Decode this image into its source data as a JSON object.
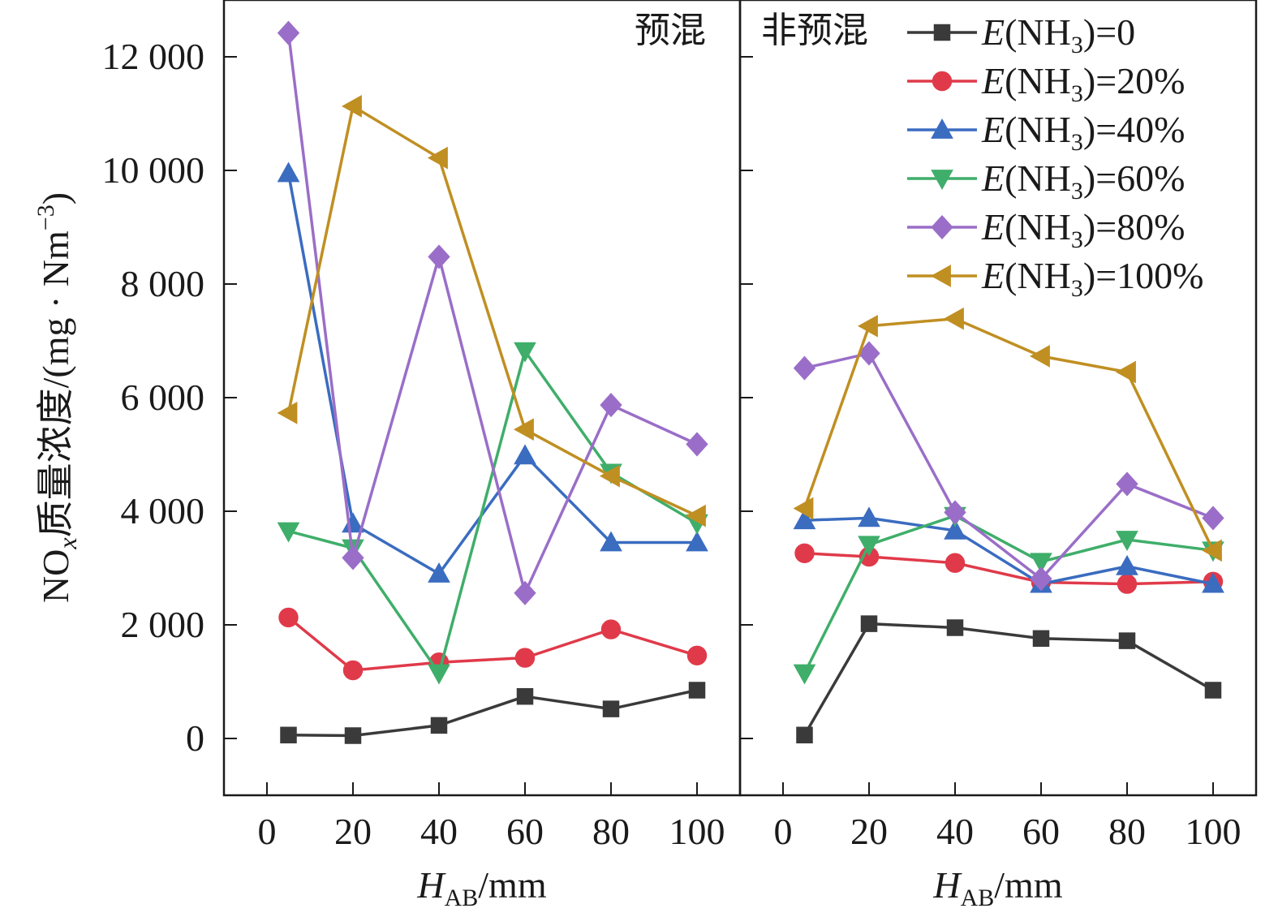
{
  "chart_data": {
    "type": "line",
    "ylabel": "NOx质量浓度/(mg · Nm⁻³)",
    "ylabel_parts": {
      "pre": "NO",
      "sub": "x",
      "post": "质量浓度/(mg · Nm",
      "sup": "−3",
      "close": ")"
    },
    "xlabel": "HAB/mm",
    "xlabel_parts": {
      "main": "H",
      "sub": "AB",
      "post": "/mm"
    },
    "ylim": [
      -1000,
      13000
    ],
    "xlim": [
      -10,
      110
    ],
    "yticks": [
      0,
      2000,
      4000,
      6000,
      8000,
      10000,
      12000
    ],
    "ytick_labels": [
      "0",
      "2 000",
      "4 000",
      "6 000",
      "8 000",
      "10 000",
      "12 000"
    ],
    "xticks": [
      0,
      20,
      40,
      60,
      80,
      100
    ],
    "xtick_labels": [
      "0",
      "20",
      "40",
      "60",
      "80",
      "100"
    ],
    "x": [
      5,
      20,
      40,
      60,
      80,
      100
    ],
    "legend_position": "top-right",
    "panels": [
      {
        "label": "预混",
        "series": [
          {
            "name": "E(NH3)=0",
            "values": [
              60,
              50,
              230,
              740,
              520,
              850
            ]
          },
          {
            "name": "E(NH3)=20%",
            "values": [
              2130,
              1200,
              1340,
              1420,
              1920,
              1460
            ]
          },
          {
            "name": "E(NH3)=40%",
            "values": [
              9950,
              3780,
              2900,
              4980,
              3450,
              3450
            ]
          },
          {
            "name": "E(NH3)=60%",
            "values": [
              3650,
              3350,
              1150,
              6820,
              4680,
              3790
            ]
          },
          {
            "name": "E(NH3)=80%",
            "values": [
              12420,
              3180,
              8480,
              2560,
              5870,
              5180
            ]
          },
          {
            "name": "E(NH3)=100%",
            "values": [
              5730,
              11130,
              10220,
              5440,
              4620,
              3920
            ]
          }
        ]
      },
      {
        "label": "非预混",
        "series": [
          {
            "name": "E(NH3)=0",
            "values": [
              60,
              2020,
              1950,
              1760,
              1720,
              850
            ]
          },
          {
            "name": "E(NH3)=20%",
            "values": [
              3260,
              3200,
              3090,
              2750,
              2720,
              2760
            ]
          },
          {
            "name": "E(NH3)=40%",
            "values": [
              3840,
              3880,
              3660,
              2720,
              3030,
              2720
            ]
          },
          {
            "name": "E(NH3)=60%",
            "values": [
              1150,
              3410,
              3920,
              3110,
              3500,
              3310
            ]
          },
          {
            "name": "E(NH3)=80%",
            "values": [
              6520,
              6780,
              3980,
              2810,
              4480,
              3880
            ]
          },
          {
            "name": "E(NH3)=100%",
            "values": [
              4050,
              7260,
              7390,
              6730,
              6450,
              3310
            ]
          }
        ]
      }
    ],
    "legend": [
      {
        "pre": "E",
        "mid": "(NH",
        "sub": "3",
        "post": ")=0",
        "color": "#3a3a3a",
        "marker": "square"
      },
      {
        "pre": "E",
        "mid": "(NH",
        "sub": "3",
        "post": ")=20%",
        "color": "#e03a4a",
        "marker": "circle"
      },
      {
        "pre": "E",
        "mid": "(NH",
        "sub": "3",
        "post": ")=40%",
        "color": "#3a6cc0",
        "marker": "triangle-up"
      },
      {
        "pre": "E",
        "mid": "(NH",
        "sub": "3",
        "post": ")=60%",
        "color": "#3fae6a",
        "marker": "triangle-down"
      },
      {
        "pre": "E",
        "mid": "(NH",
        "sub": "3",
        "post": ")=80%",
        "color": "#9a6ec8",
        "marker": "diamond"
      },
      {
        "pre": "E",
        "mid": "(NH",
        "sub": "3",
        "post": ")=100%",
        "color": "#c08f22",
        "marker": "triangle-left"
      }
    ]
  }
}
